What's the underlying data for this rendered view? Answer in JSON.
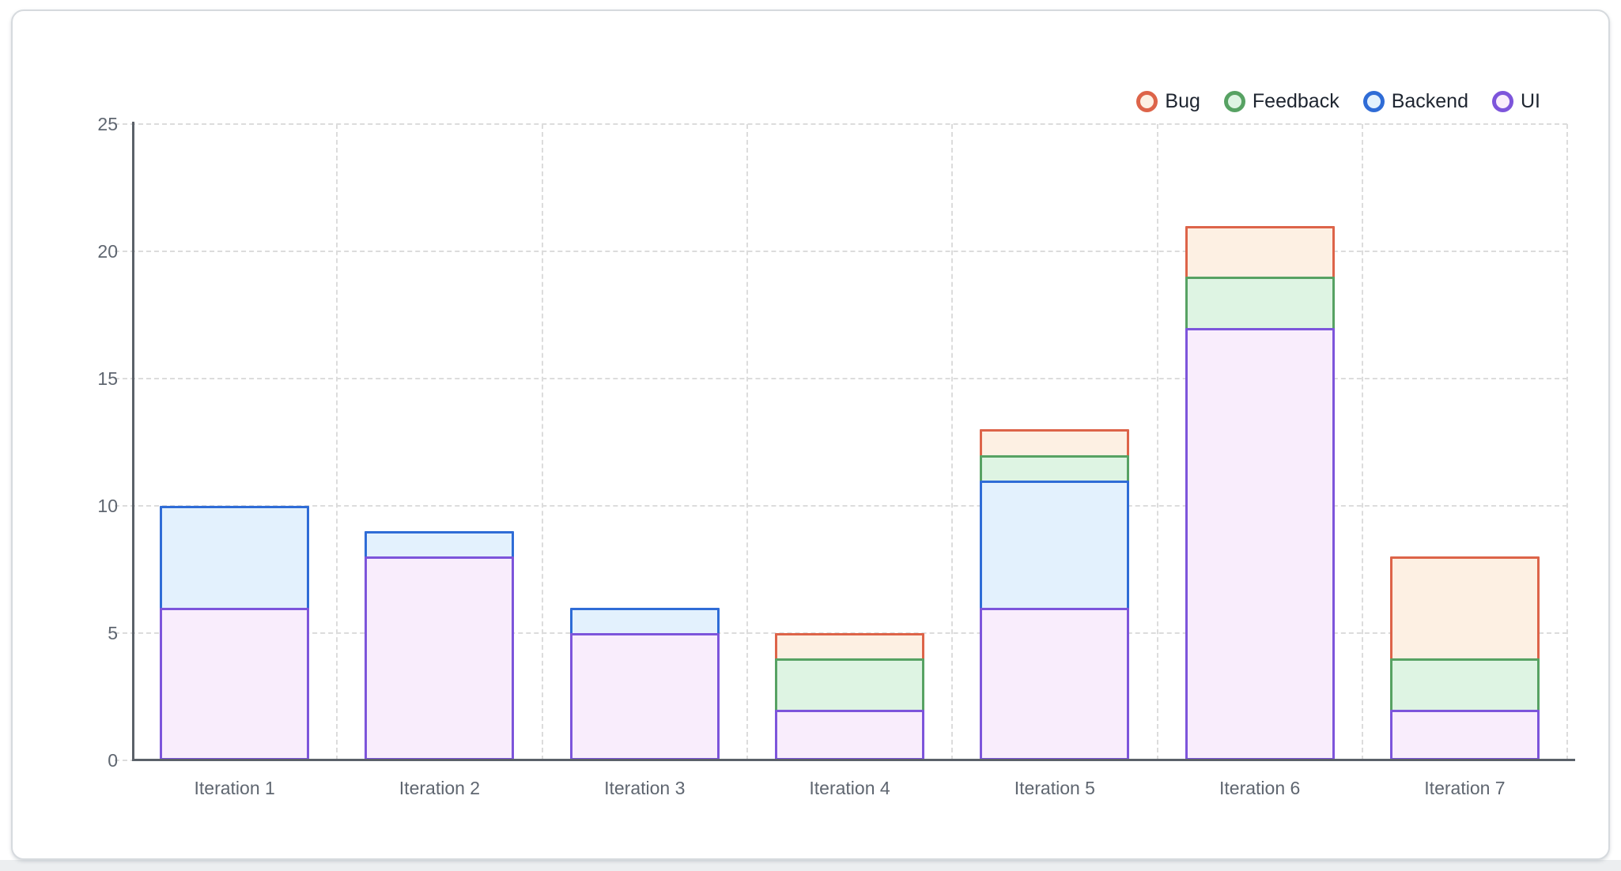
{
  "page": {
    "background": "#ffffff",
    "bottom_strip_color": "#eceef0",
    "card_background": "#ffffff",
    "card_border_color": "#d6dade"
  },
  "axis": {
    "axis_line_color": "#5b6169",
    "grid_color": "#dcdcdc",
    "tick_label_color": "#5f6670"
  },
  "legend": {
    "text_color": "#1e2530",
    "items": [
      {
        "label": "Bug",
        "stroke": "#dd6449",
        "fill": "#fdf0e3"
      },
      {
        "label": "Feedback",
        "stroke": "#57a263",
        "fill": "#def4e3"
      },
      {
        "label": "Backend",
        "stroke": "#2f6cd6",
        "fill": "#e3f1fd"
      },
      {
        "label": "UI",
        "stroke": "#7d55db",
        "fill": "#f9edfc"
      }
    ]
  },
  "chart_data": {
    "type": "bar",
    "stacked": true,
    "title": "",
    "xlabel": "",
    "ylabel": "",
    "grid": "dashed",
    "legend_position": "top-right",
    "ylim": [
      0,
      25
    ],
    "yticks": [
      0,
      5,
      10,
      15,
      20,
      25
    ],
    "categories": [
      "Iteration 1",
      "Iteration 2",
      "Iteration 3",
      "Iteration 4",
      "Iteration 5",
      "Iteration 6",
      "Iteration 7"
    ],
    "series": [
      {
        "name": "UI",
        "stroke": "#7d55db",
        "fill": "#f9edfc",
        "values": [
          6,
          8,
          5,
          2,
          6,
          17,
          2
        ]
      },
      {
        "name": "Backend",
        "stroke": "#2f6cd6",
        "fill": "#e3f1fd",
        "values": [
          4,
          1,
          1,
          0,
          5,
          0,
          0
        ]
      },
      {
        "name": "Feedback",
        "stroke": "#57a263",
        "fill": "#def4e3",
        "values": [
          0,
          0,
          0,
          2,
          1,
          2,
          2
        ]
      },
      {
        "name": "Bug",
        "stroke": "#dd6449",
        "fill": "#fdf0e3",
        "values": [
          0,
          0,
          0,
          1,
          1,
          2,
          4
        ]
      }
    ],
    "totals": [
      10,
      9,
      6,
      5,
      13,
      21,
      8
    ]
  }
}
